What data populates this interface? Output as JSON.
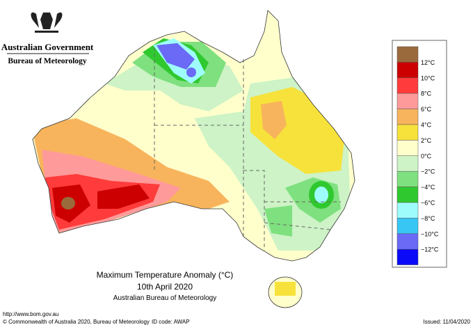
{
  "header": {
    "government": "Australian Government",
    "agency": "Bureau of Meteorology"
  },
  "legend": {
    "colors": [
      "#9b6a3c",
      "#cc0000",
      "#ff3b3b",
      "#ff9a9a",
      "#f8b45c",
      "#f7e23b",
      "#ffffcc",
      "#cdf3c6",
      "#7fe07f",
      "#2fc92f",
      "#9ffcfc",
      "#38c6f4",
      "#6a6af6",
      "#0a0af8"
    ],
    "labels": [
      "12°C",
      "10°C",
      "8°C",
      "6°C",
      "4°C",
      "2°C",
      "0°C",
      "−2°C",
      "−4°C",
      "−6°C",
      "−8°C",
      "−10°C",
      "−12°C"
    ]
  },
  "title": {
    "main": "Maximum Temperature Anomaly (°C)",
    "date": "10th April 2020",
    "source": "Australian Bureau of Meteorology"
  },
  "footer": {
    "url": "http://www.bom.gov.au",
    "copyright": "© Commonwealth of Australia 2020, Bureau of Meteorology",
    "id": "ID code: AWAP",
    "issued": "Issued: 11/04/2020"
  }
}
